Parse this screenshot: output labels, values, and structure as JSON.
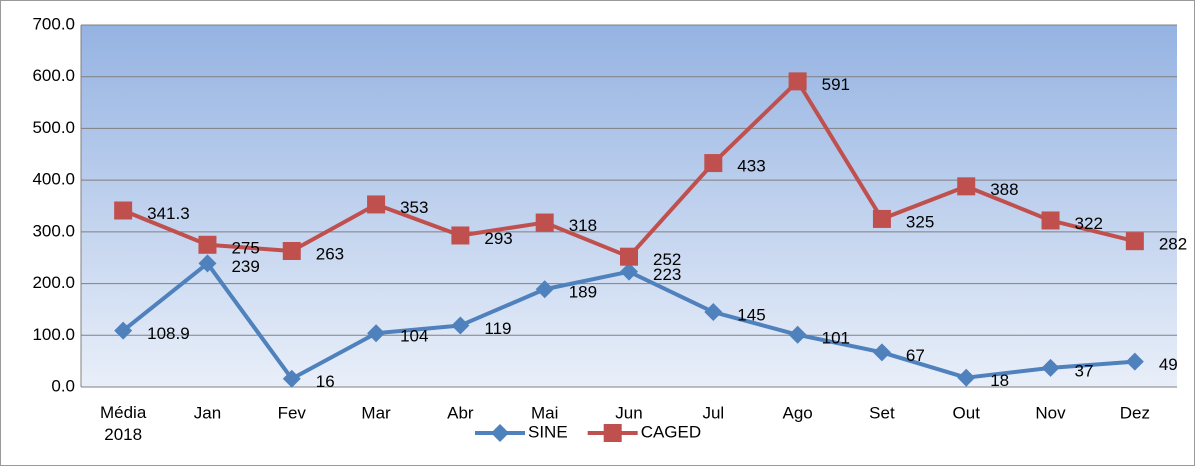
{
  "chart_data": {
    "type": "line",
    "categories": [
      "Média 2018",
      "Jan",
      "Fev",
      "Mar",
      "Abr",
      "Mai",
      "Jun",
      "Jul",
      "Ago",
      "Set",
      "Out",
      "Nov",
      "Dez"
    ],
    "series": [
      {
        "name": "SINE",
        "color": "#4f81bd",
        "marker": "diamond",
        "values": [
          108.9,
          239,
          16,
          104,
          119,
          189,
          223,
          145,
          101,
          67,
          18,
          37,
          49
        ]
      },
      {
        "name": "CAGED",
        "color": "#c0504d",
        "marker": "square",
        "values": [
          341.3,
          275,
          263,
          353,
          293,
          318,
          252,
          433,
          591,
          325,
          388,
          322,
          282
        ]
      }
    ],
    "ylim": [
      0,
      700
    ],
    "yticks": [
      {
        "value": 0,
        "label": "0.0"
      },
      {
        "value": 100,
        "label": "100.0"
      },
      {
        "value": 200,
        "label": "200.0"
      },
      {
        "value": 300,
        "label": "300.0"
      },
      {
        "value": 400,
        "label": "400.0"
      },
      {
        "value": 500,
        "label": "500.0"
      },
      {
        "value": 600,
        "label": "600.0"
      },
      {
        "value": 700,
        "label": "700.0"
      }
    ],
    "grid": true,
    "legend": "bottom"
  }
}
